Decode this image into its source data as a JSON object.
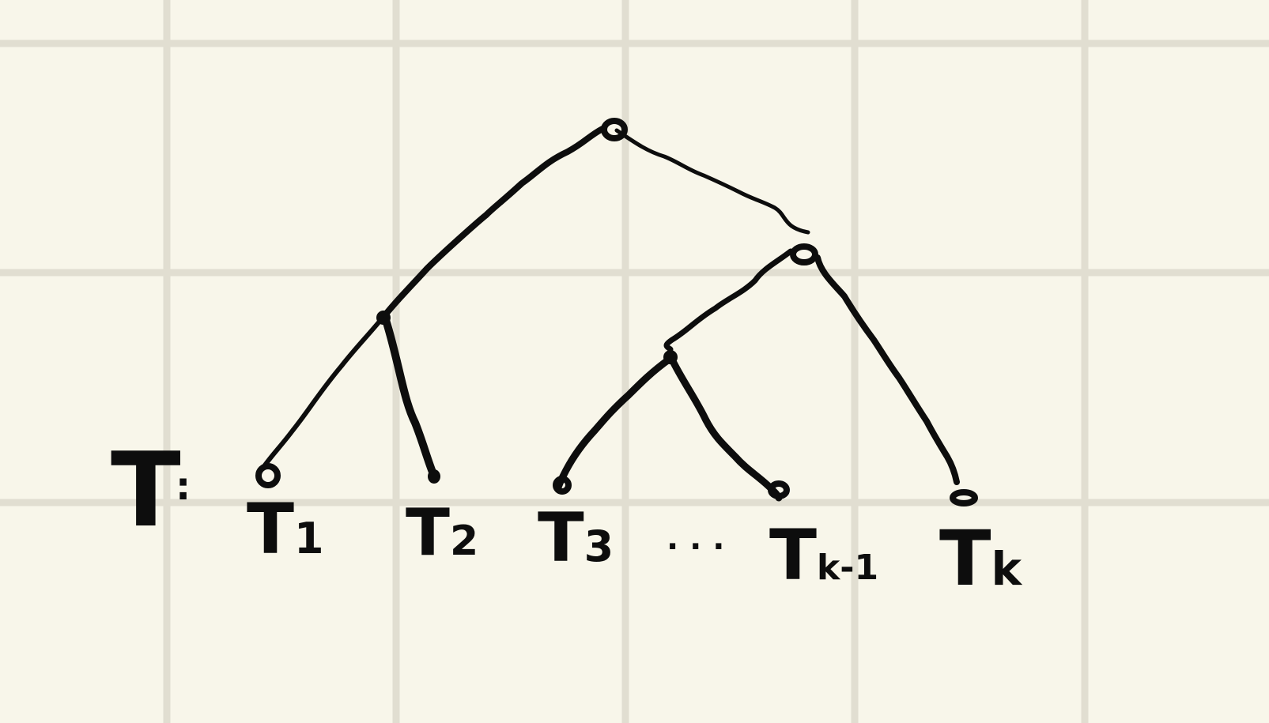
{
  "tree": {
    "label": "T",
    "separator": ":",
    "subtrees": [
      {
        "id": "t1",
        "label": "T",
        "subscript": "1"
      },
      {
        "id": "t2",
        "label": "T",
        "subscript": "2"
      },
      {
        "id": "t3",
        "label": "T",
        "subscript": "3"
      },
      {
        "id": "tk-1",
        "label": "T",
        "subscript": "k-1"
      },
      {
        "id": "tk",
        "label": "T",
        "subscript": "k"
      }
    ],
    "ellipsis": "· · ·"
  },
  "colors": {
    "paper": "#f8f6ea",
    "grid": "#e1ded1",
    "ink": "#0d0d0d"
  }
}
